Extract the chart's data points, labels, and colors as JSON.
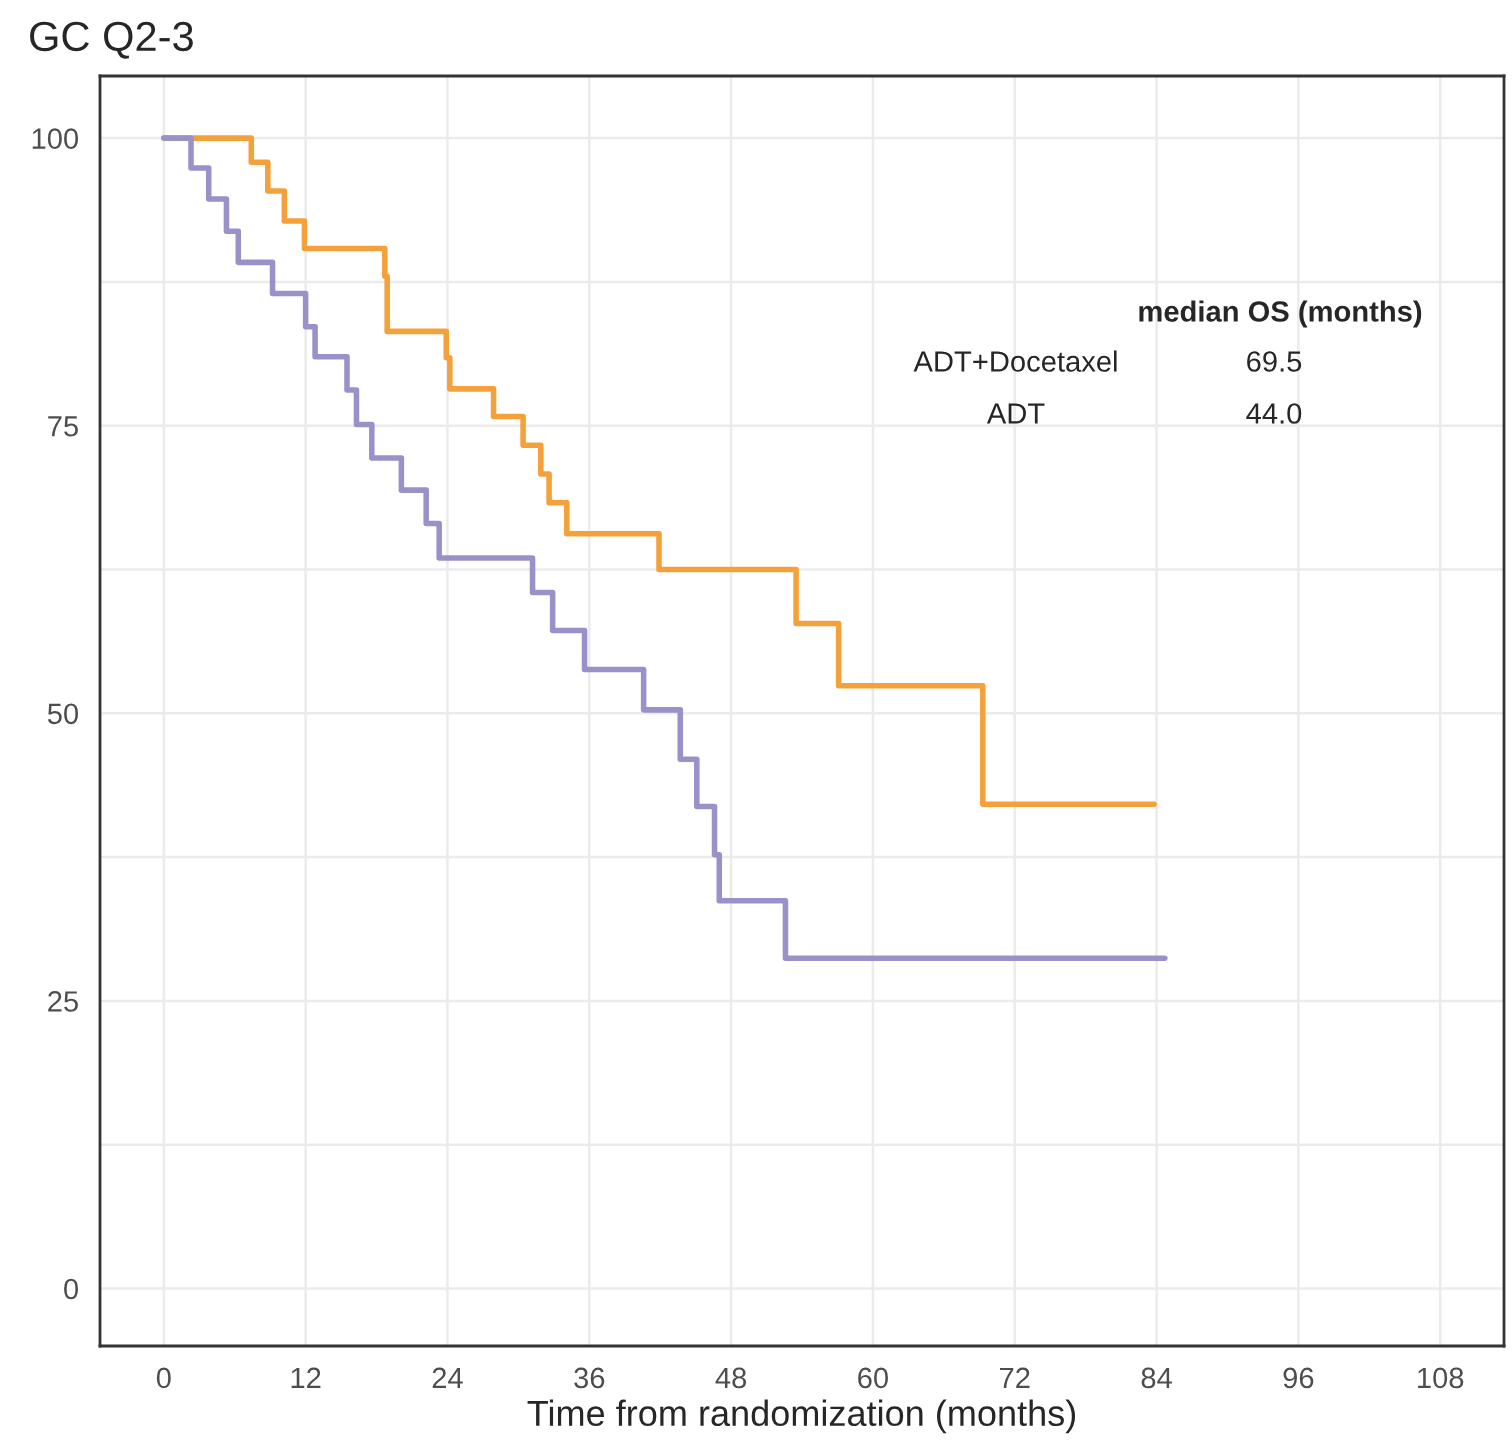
{
  "chart_data": {
    "type": "step",
    "title": "GC Q2-3",
    "xlabel": "Time from randomization (months)",
    "xlim": [
      -5.4,
      113.4
    ],
    "ylim": [
      -5,
      105.4
    ],
    "xticks": [
      0,
      12,
      24,
      36,
      48,
      60,
      72,
      84,
      96,
      108
    ],
    "yticks": [
      0,
      25,
      50,
      75,
      100
    ],
    "grid": true,
    "series": [
      {
        "color": "#f5a13b",
        "x": [
          0,
          7.4,
          8.8,
          10.2,
          11.9,
          18.7,
          18.9,
          23.9,
          24.2,
          27.9,
          30.4,
          31.9,
          32.6,
          34.1,
          41.9,
          53.5,
          57.1,
          69.3,
          83.8
        ],
        "values": [
          100,
          97.9,
          95.4,
          92.8,
          90.4,
          88.0,
          83.2,
          80.9,
          78.2,
          75.8,
          73.3,
          70.8,
          68.3,
          65.6,
          62.5,
          57.8,
          52.4,
          42.1,
          42.1
        ]
      },
      {
        "color": "#9b91c9",
        "x": [
          0,
          2.3,
          3.8,
          5.3,
          6.3,
          9.2,
          12.0,
          12.8,
          15.5,
          16.3,
          17.6,
          20.1,
          22.2,
          23.3,
          31.2,
          32.9,
          35.6,
          40.6,
          43.7,
          45.1,
          46.6,
          47.0,
          52.6,
          84.7
        ],
        "values": [
          100,
          97.4,
          94.7,
          91.9,
          89.2,
          86.5,
          83.6,
          81.0,
          78.1,
          75.1,
          72.2,
          69.4,
          66.5,
          63.5,
          60.5,
          57.2,
          53.8,
          50.3,
          46.0,
          41.9,
          37.7,
          33.7,
          28.7,
          28.7
        ]
      }
    ],
    "annotations": [
      "median OS (months)",
      "ADT+Docetaxel",
      "69.5",
      "ADT",
      "44.0"
    ]
  }
}
